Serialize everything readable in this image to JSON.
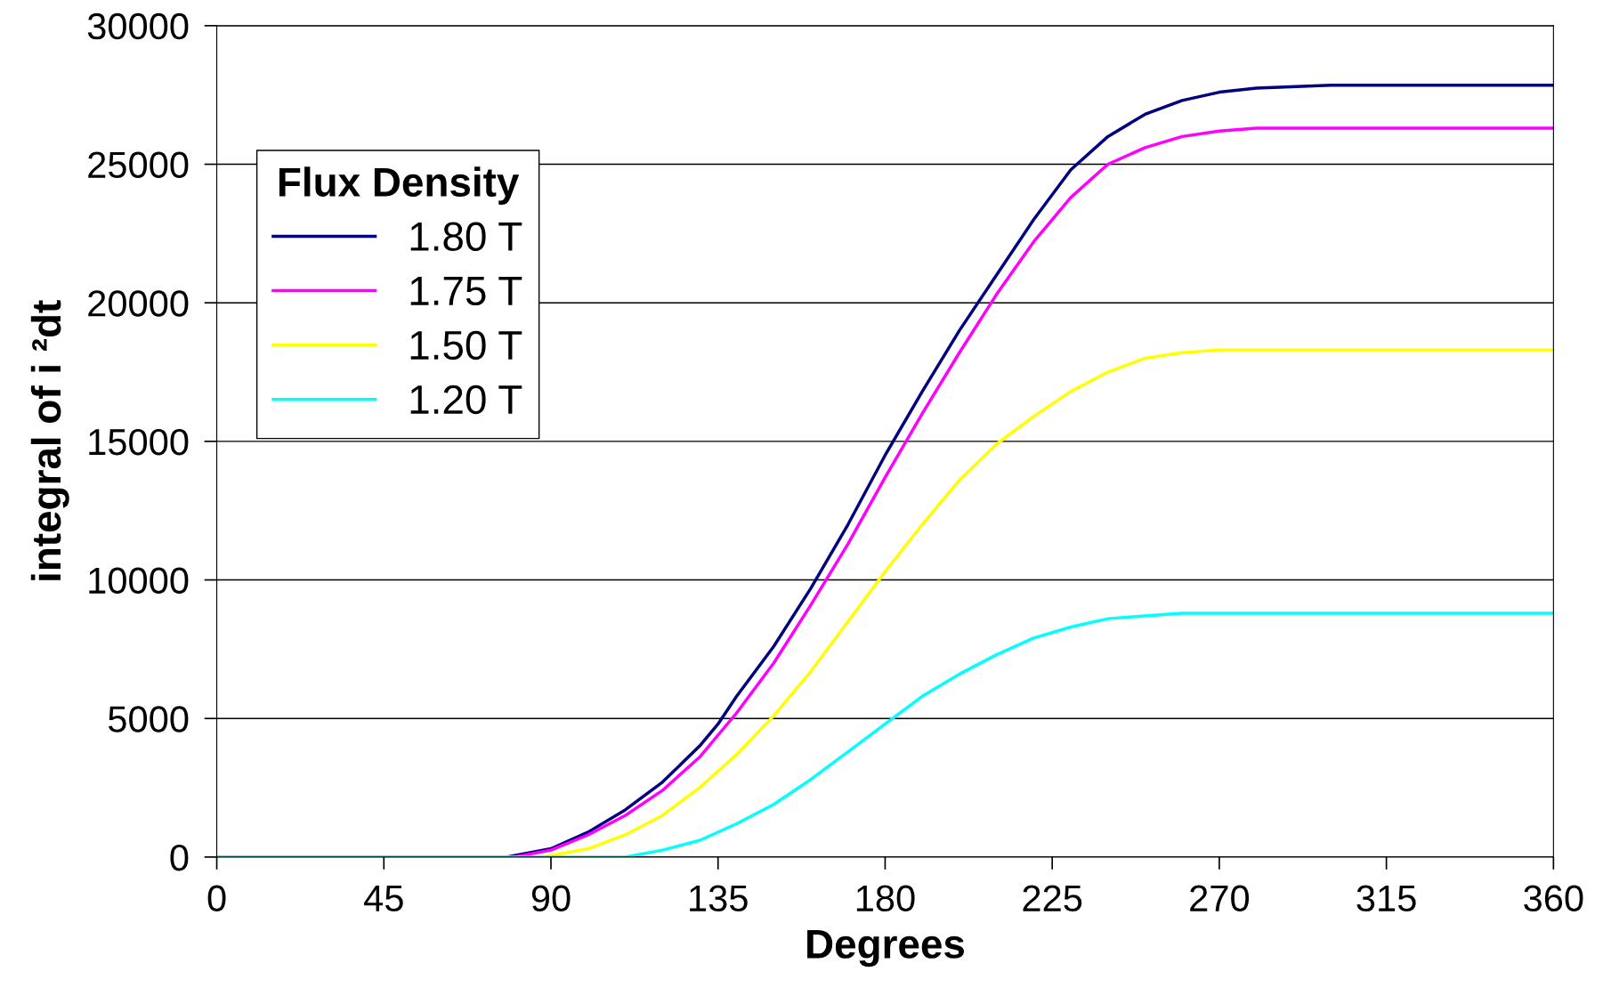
{
  "chart_data": {
    "type": "line",
    "xlabel": "Degrees",
    "ylabel": "integral of i ²dt",
    "legend_title": "Flux Density",
    "xlim": [
      0,
      360
    ],
    "xticks": [
      0,
      45,
      90,
      135,
      180,
      225,
      270,
      315,
      360
    ],
    "ylim": [
      0,
      30000
    ],
    "yticks": [
      0,
      5000,
      10000,
      15000,
      20000,
      25000,
      30000
    ],
    "grid": "y",
    "legend": "top left",
    "marker": "none",
    "line_style": "solid",
    "series": [
      {
        "name": "1.80 T",
        "color": "#000080",
        "x": [
          0,
          78,
          90,
          100,
          110,
          120,
          130,
          135,
          140,
          150,
          160,
          170,
          180,
          190,
          200,
          210,
          220,
          230,
          240,
          250,
          260,
          270,
          280,
          300,
          360
        ],
        "values": [
          0,
          0,
          300,
          900,
          1700,
          2700,
          4000,
          4800,
          5800,
          7600,
          9700,
          12000,
          14500,
          16800,
          19000,
          21000,
          23000,
          24800,
          26000,
          26800,
          27300,
          27600,
          27750,
          27850,
          27850
        ]
      },
      {
        "name": "1.75 T",
        "color": "#ff00ff",
        "x": [
          0,
          80,
          90,
          100,
          110,
          120,
          130,
          140,
          150,
          160,
          170,
          180,
          190,
          200,
          210,
          220,
          230,
          240,
          250,
          260,
          270,
          280,
          360
        ],
        "values": [
          0,
          0,
          250,
          800,
          1500,
          2400,
          3600,
          5200,
          7000,
          9100,
          11300,
          13700,
          16000,
          18200,
          20300,
          22200,
          23800,
          25000,
          25600,
          26000,
          26200,
          26300,
          26300
        ]
      },
      {
        "name": "1.50 T",
        "color": "#ffff00",
        "x": [
          0,
          88,
          100,
          110,
          120,
          130,
          140,
          150,
          160,
          170,
          180,
          190,
          200,
          210,
          220,
          230,
          240,
          250,
          260,
          270,
          360
        ],
        "values": [
          0,
          0,
          300,
          800,
          1500,
          2500,
          3700,
          5100,
          6700,
          8500,
          10300,
          12000,
          13600,
          14900,
          15900,
          16800,
          17500,
          18000,
          18200,
          18300,
          18300
        ]
      },
      {
        "name": "1.20 T",
        "color": "#00ffff",
        "x": [
          0,
          110,
          120,
          130,
          140,
          150,
          160,
          170,
          180,
          190,
          200,
          210,
          220,
          230,
          240,
          250,
          260,
          360
        ],
        "values": [
          0,
          0,
          250,
          600,
          1200,
          1900,
          2800,
          3800,
          4800,
          5800,
          6600,
          7300,
          7900,
          8300,
          8600,
          8700,
          8800,
          8800
        ]
      }
    ]
  }
}
